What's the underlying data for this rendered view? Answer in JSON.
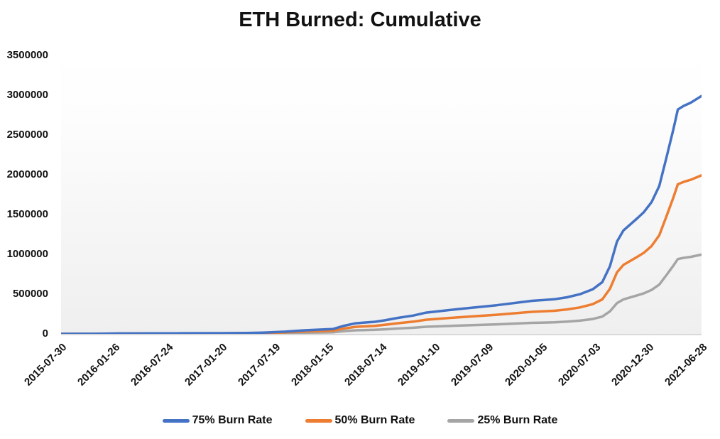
{
  "title": "ETH Burned: Cumulative",
  "chart_data": {
    "type": "line",
    "title": "ETH Burned: Cumulative",
    "grid": false,
    "legend_position": "bottom",
    "x_axis": {
      "tick_labels": [
        "2015-07-30",
        "2016-01-26",
        "2016-07-24",
        "2017-01-20",
        "2017-07-19",
        "2018-01-15",
        "2018-07-14",
        "2019-01-10",
        "2019-07-09",
        "2020-01-05",
        "2020-07-03",
        "2020-12-30",
        "2021-06-28"
      ]
    },
    "y_axis": {
      "tick_labels": [
        "0",
        "500000",
        "1000000",
        "1500000",
        "2000000",
        "2500000",
        "3000000",
        "3500000"
      ],
      "min": 0,
      "max": 3500000
    },
    "series": [
      {
        "name": "75% Burn Rate",
        "color": "#4472C4",
        "points": [
          [
            0.0,
            0
          ],
          [
            0.05,
            500
          ],
          [
            0.09,
            5000
          ],
          [
            0.18,
            7000
          ],
          [
            0.25,
            9000
          ],
          [
            0.29,
            12000
          ],
          [
            0.315,
            16000
          ],
          [
            0.35,
            28000
          ],
          [
            0.38,
            45000
          ],
          [
            0.41,
            55000
          ],
          [
            0.425,
            62000
          ],
          [
            0.44,
            98000
          ],
          [
            0.46,
            133000
          ],
          [
            0.49,
            152000
          ],
          [
            0.505,
            170000
          ],
          [
            0.525,
            200000
          ],
          [
            0.55,
            230000
          ],
          [
            0.57,
            267000
          ],
          [
            0.62,
            312000
          ],
          [
            0.68,
            360000
          ],
          [
            0.735,
            415000
          ],
          [
            0.77,
            435000
          ],
          [
            0.79,
            460000
          ],
          [
            0.81,
            498000
          ],
          [
            0.83,
            560000
          ],
          [
            0.845,
            650000
          ],
          [
            0.857,
            850000
          ],
          [
            0.868,
            1160000
          ],
          [
            0.878,
            1300000
          ],
          [
            0.89,
            1385000
          ],
          [
            0.9,
            1455000
          ],
          [
            0.91,
            1530000
          ],
          [
            0.922,
            1655000
          ],
          [
            0.934,
            1860000
          ],
          [
            0.945,
            2210000
          ],
          [
            0.956,
            2570000
          ],
          [
            0.963,
            2820000
          ],
          [
            0.972,
            2865000
          ],
          [
            0.983,
            2905000
          ],
          [
            1.0,
            2990000
          ]
        ]
      },
      {
        "name": "50% Burn Rate",
        "color": "#ED7D31",
        "points": [
          [
            0.0,
            0
          ],
          [
            0.05,
            300
          ],
          [
            0.09,
            3300
          ],
          [
            0.18,
            4700
          ],
          [
            0.25,
            6000
          ],
          [
            0.29,
            8000
          ],
          [
            0.315,
            10700
          ],
          [
            0.35,
            18700
          ],
          [
            0.38,
            30000
          ],
          [
            0.41,
            36700
          ],
          [
            0.425,
            41300
          ],
          [
            0.44,
            65300
          ],
          [
            0.46,
            88700
          ],
          [
            0.49,
            101300
          ],
          [
            0.505,
            113300
          ],
          [
            0.525,
            133300
          ],
          [
            0.55,
            153300
          ],
          [
            0.57,
            178000
          ],
          [
            0.62,
            208000
          ],
          [
            0.68,
            240000
          ],
          [
            0.735,
            276700
          ],
          [
            0.77,
            290000
          ],
          [
            0.79,
            306700
          ],
          [
            0.81,
            332000
          ],
          [
            0.83,
            373300
          ],
          [
            0.845,
            433300
          ],
          [
            0.857,
            566700
          ],
          [
            0.868,
            773300
          ],
          [
            0.878,
            866700
          ],
          [
            0.89,
            923300
          ],
          [
            0.9,
            970000
          ],
          [
            0.91,
            1020000
          ],
          [
            0.922,
            1103300
          ],
          [
            0.934,
            1240000
          ],
          [
            0.945,
            1473300
          ],
          [
            0.956,
            1713300
          ],
          [
            0.963,
            1880000
          ],
          [
            0.972,
            1910000
          ],
          [
            0.983,
            1936700
          ],
          [
            1.0,
            1993300
          ]
        ]
      },
      {
        "name": "25% Burn Rate",
        "color": "#A5A5A5",
        "points": [
          [
            0.0,
            0
          ],
          [
            0.05,
            150
          ],
          [
            0.09,
            1650
          ],
          [
            0.18,
            2350
          ],
          [
            0.25,
            3000
          ],
          [
            0.29,
            4000
          ],
          [
            0.315,
            5300
          ],
          [
            0.35,
            9300
          ],
          [
            0.38,
            15000
          ],
          [
            0.41,
            18300
          ],
          [
            0.425,
            20700
          ],
          [
            0.44,
            32700
          ],
          [
            0.46,
            44300
          ],
          [
            0.49,
            50700
          ],
          [
            0.505,
            56700
          ],
          [
            0.525,
            66700
          ],
          [
            0.55,
            76700
          ],
          [
            0.57,
            89000
          ],
          [
            0.62,
            104000
          ],
          [
            0.68,
            120000
          ],
          [
            0.735,
            138300
          ],
          [
            0.77,
            145000
          ],
          [
            0.79,
            153300
          ],
          [
            0.81,
            166000
          ],
          [
            0.83,
            186700
          ],
          [
            0.845,
            216700
          ],
          [
            0.857,
            283300
          ],
          [
            0.868,
            386700
          ],
          [
            0.878,
            433300
          ],
          [
            0.89,
            461700
          ],
          [
            0.9,
            485000
          ],
          [
            0.91,
            510000
          ],
          [
            0.922,
            551700
          ],
          [
            0.934,
            620000
          ],
          [
            0.945,
            736700
          ],
          [
            0.956,
            856700
          ],
          [
            0.963,
            940000
          ],
          [
            0.972,
            955000
          ],
          [
            0.983,
            968300
          ],
          [
            1.0,
            996700
          ]
        ]
      }
    ]
  },
  "colors": {
    "axis_line": "#D9D9D9",
    "text": "#111111",
    "plot_bg_top": "#FFFFFF",
    "plot_bg_bottom": "#EFEFEF"
  }
}
